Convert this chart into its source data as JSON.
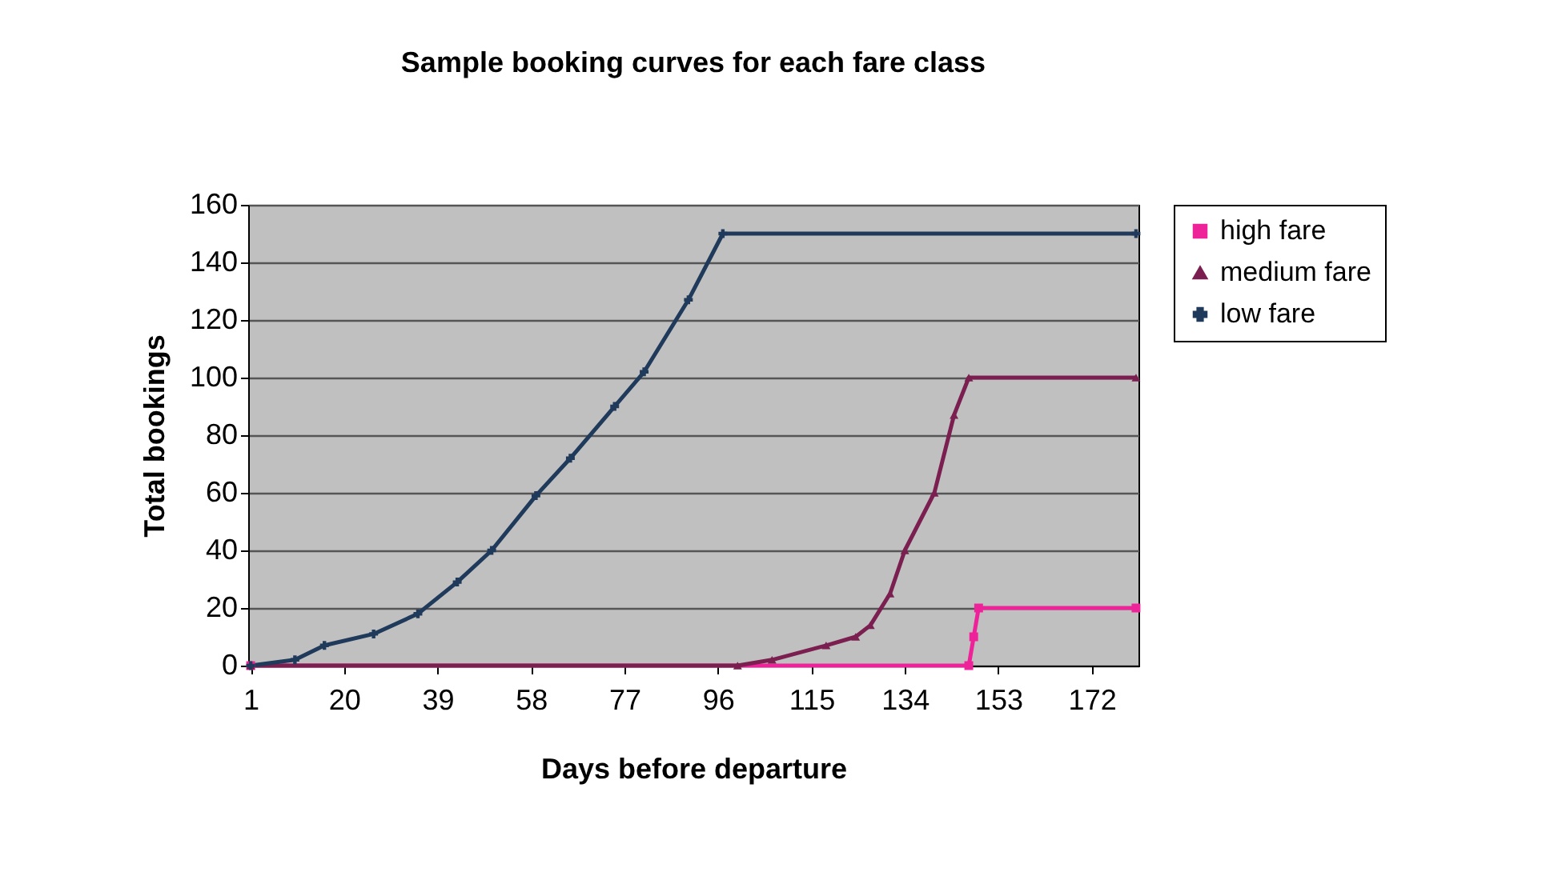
{
  "chart_data": {
    "type": "line",
    "title": "Sample booking curves for each fare class",
    "xlabel": "Days before departure",
    "ylabel": "Total bookings",
    "xlim": [
      0.5,
      181.5
    ],
    "xticks": [
      1,
      20,
      39,
      58,
      77,
      96,
      115,
      134,
      153,
      172
    ],
    "ylim": [
      0,
      160
    ],
    "yticks": [
      0,
      20,
      40,
      60,
      80,
      100,
      120,
      140,
      160
    ],
    "grid": "y",
    "legend": "right",
    "series": [
      {
        "name": "high fare",
        "color": "#ee2299",
        "marker": "square",
        "x": [
          1,
          147,
          148,
          149,
          181
        ],
        "values": [
          0,
          0,
          10,
          20,
          20
        ]
      },
      {
        "name": "medium fare",
        "color": "#7a1f50",
        "marker": "triangle",
        "x": [
          1,
          100,
          107,
          118,
          124,
          127,
          131,
          134,
          140,
          144,
          147,
          181
        ],
        "values": [
          0,
          0,
          2,
          7,
          10,
          14,
          25,
          40,
          60,
          87,
          100,
          100
        ]
      },
      {
        "name": "low fare",
        "color": "#1f3a5a",
        "marker": "cross",
        "x": [
          1,
          10,
          16,
          26,
          35,
          43,
          50,
          59,
          66,
          75,
          81,
          90,
          97,
          181
        ],
        "values": [
          0,
          2,
          7,
          11,
          18,
          29,
          40,
          59,
          72,
          90,
          102,
          127,
          150,
          150
        ]
      }
    ]
  }
}
